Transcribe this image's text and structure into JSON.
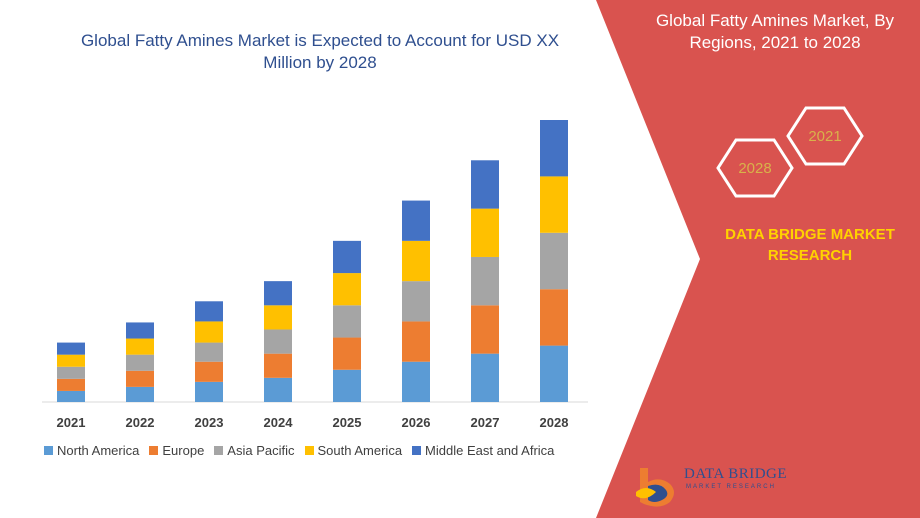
{
  "title": "Global Fatty Amines Market is Expected to Account for USD XX Million by 2028",
  "panel": {
    "title": "Global Fatty Amines Market, By Regions, 2021 to 2028",
    "hex_badges": [
      "2021",
      "2028"
    ],
    "brand": "DATA BRIDGE MARKET RESEARCH"
  },
  "logo": {
    "name": "DATA BRIDGE",
    "tagline": "MARKET RESEARCH"
  },
  "colors": {
    "red_panel": "#d9534f",
    "north_america": "#5b9bd5",
    "europe": "#ed7d31",
    "asia_pacific": "#a5a5a5",
    "south_america": "#ffc000",
    "middle_east_africa": "#4472c4"
  },
  "chart_data": {
    "type": "bar",
    "stacked": true,
    "title": "Global Fatty Amines Market is Expected to Account for USD XX Million by 2028",
    "categories": [
      "2021",
      "2022",
      "2023",
      "2024",
      "2025",
      "2026",
      "2027",
      "2028"
    ],
    "series": [
      {
        "name": "North America",
        "color": "#5b9bd5",
        "values": [
          11,
          15,
          20,
          24,
          32,
          40,
          48,
          56
        ]
      },
      {
        "name": "Europe",
        "color": "#ed7d31",
        "values": [
          12,
          16,
          20,
          24,
          32,
          40,
          48,
          56
        ]
      },
      {
        "name": "Asia Pacific",
        "color": "#a5a5a5",
        "values": [
          12,
          16,
          19,
          24,
          32,
          40,
          48,
          56
        ]
      },
      {
        "name": "South America",
        "color": "#ffc000",
        "values": [
          12,
          16,
          21,
          24,
          32,
          40,
          48,
          56
        ]
      },
      {
        "name": "Middle East and Africa",
        "color": "#4472c4",
        "values": [
          12,
          16,
          20,
          24,
          32,
          40,
          48,
          56
        ]
      }
    ],
    "xlabel": "",
    "ylabel": "",
    "ylim": [
      0,
      280
    ],
    "grid": false,
    "legend": "bottom"
  }
}
